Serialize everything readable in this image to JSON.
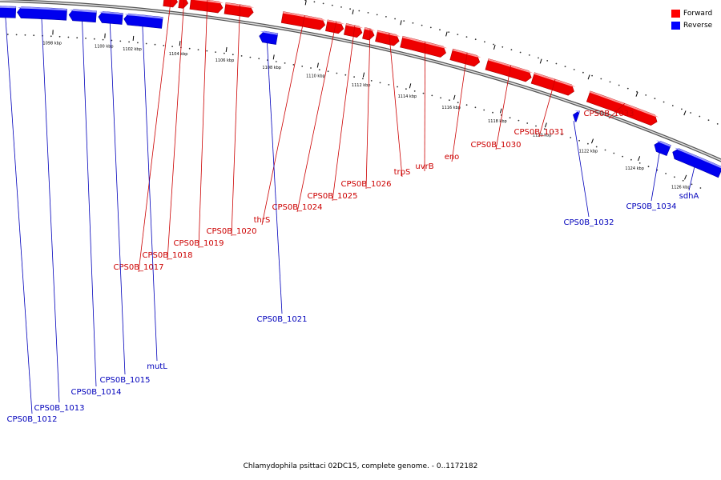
{
  "caption": "Chlamydophila psittaci 02DC15, complete genome. - 0..1172182",
  "legend": [
    {
      "label": "Forward",
      "color": "#ff0000"
    },
    {
      "label": "Reverse",
      "color": "#0000ff"
    }
  ],
  "colors": {
    "forward": "#ee0000",
    "reverse": "#0000ee",
    "forward_label": "#cc0000",
    "reverse_label": "#0000bb"
  },
  "scale": {
    "unit": "kbp",
    "ticks": [
      "1098 kbp",
      "1100 kbp",
      "1102 kbp",
      "1104 kbp",
      "1106 kbp",
      "1108 kbp",
      "1110 kbp",
      "1112 kbp",
      "1114 kbp",
      "1116 kbp",
      "1118 kbp",
      "1120 kbp",
      "1122 kbp",
      "1124 kbp",
      "1126 kbp"
    ]
  },
  "genes": {
    "forward": [
      "CPS0B_1017",
      "CPS0B_1018",
      "CPS0B_1019",
      "CPS0B_1020",
      "thrS",
      "CPS0B_1024",
      "CPS0B_1025",
      "CPS0B_1026",
      "trpS",
      "uvrB",
      "eno",
      "CPS0B_1030",
      "CPS0B_1031",
      "CPS0B_1033"
    ],
    "reverse": [
      "CPS0B_1012",
      "CPS0B_1013",
      "CPS0B_1014",
      "CPS0B_1015",
      "mutL",
      "CPS0B_1021",
      "CPS0B_1032",
      "CPS0B_1034",
      "sdhA"
    ]
  }
}
